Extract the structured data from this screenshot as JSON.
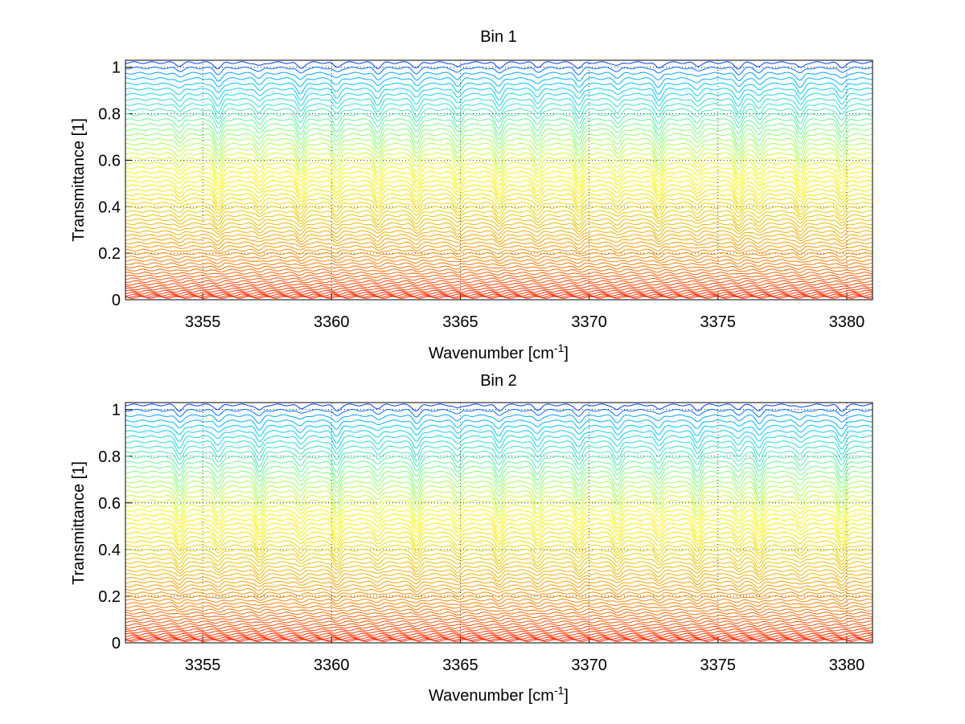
{
  "chart_data": [
    {
      "type": "line",
      "title": "Bin 1",
      "xlabel_main": "Wavenumber [cm",
      "xlabel_sup": "-1",
      "xlabel_close": "]",
      "ylabel": "Transmittance [1]",
      "xlim": [
        3352,
        3381
      ],
      "ylim": [
        0,
        1.03
      ],
      "xticks": [
        3355,
        3360,
        3365,
        3370,
        3375,
        3380
      ],
      "yticks": [
        0,
        0.2,
        0.4,
        0.6,
        0.8,
        1
      ],
      "grid": true,
      "line_count": 60,
      "line_levels": "transmittance levels from about 0.01 to about 1.02",
      "absorption_lines_cm-1": [
        3354.1,
        3355.6,
        3357.2,
        3358.8,
        3360.2,
        3361.8,
        3363.3,
        3364.9,
        3366.5,
        3368.0,
        3369.6,
        3371.1,
        3372.7,
        3374.2,
        3375.8,
        3376.6,
        3378.2,
        3379.8
      ],
      "colormap": [
        "#ff2200",
        "#ff8800",
        "#e8c800",
        "#ffff00",
        "#80ff80",
        "#00c8ff",
        "#0040ff"
      ]
    },
    {
      "type": "line",
      "title": "Bin 2",
      "xlabel_main": "Wavenumber [cm",
      "xlabel_sup": "-1",
      "xlabel_close": "]",
      "ylabel": "Transmittance [1]",
      "xlim": [
        3352,
        3381
      ],
      "ylim": [
        0,
        1.03
      ],
      "xticks": [
        3355,
        3360,
        3365,
        3370,
        3375,
        3380
      ],
      "yticks": [
        0,
        0.2,
        0.4,
        0.6,
        0.8,
        1
      ],
      "grid": true,
      "line_count": 60,
      "line_levels": "transmittance levels from about 0.01 to about 1.02",
      "absorption_lines_cm-1": [
        3354.1,
        3355.6,
        3357.2,
        3358.8,
        3360.2,
        3361.8,
        3363.3,
        3364.9,
        3366.5,
        3368.0,
        3369.6,
        3371.1,
        3372.7,
        3374.2,
        3375.8,
        3376.6,
        3378.2,
        3379.8
      ],
      "colormap": [
        "#ff2200",
        "#ff8800",
        "#e8c800",
        "#ffff00",
        "#80ff80",
        "#00c8ff",
        "#0040ff"
      ]
    }
  ]
}
